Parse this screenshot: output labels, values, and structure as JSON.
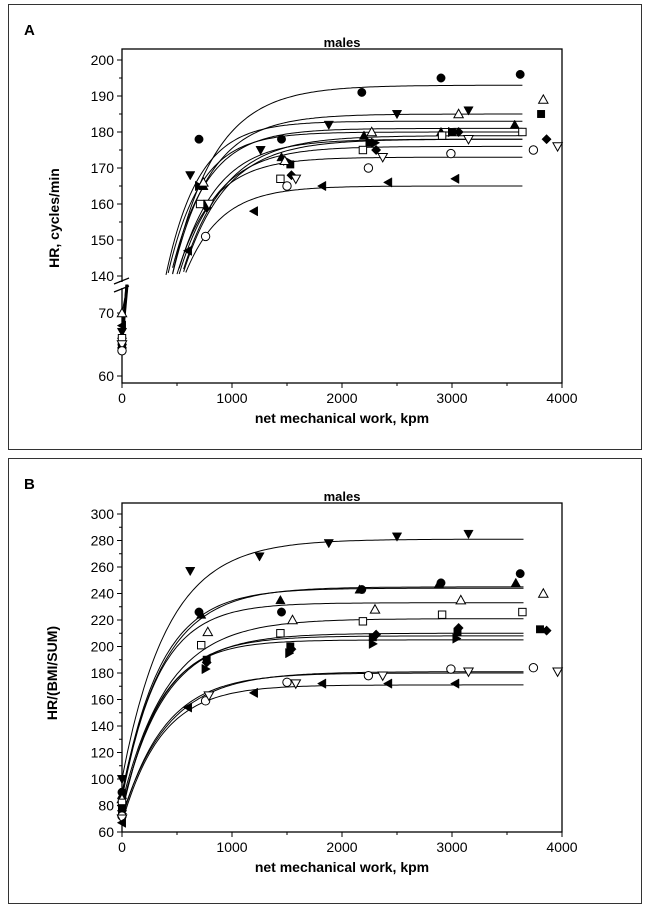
{
  "chart_data": [
    {
      "panel": "A",
      "type": "scatter",
      "title": "males",
      "xlabel": "net mechanical work, kpm",
      "ylabel": "HR, cycles/min",
      "xlim": [
        0,
        4000
      ],
      "x_ticks": [
        "0",
        "1000",
        "2000",
        "3000",
        "4000"
      ],
      "y_ticks_upper": [
        "140",
        "150",
        "160",
        "170",
        "180",
        "190",
        "200"
      ],
      "y_ticks_lower": [
        "60",
        "70"
      ],
      "axis_break": true,
      "ylim_upper": [
        140,
        200
      ],
      "ylim_lower": [
        60,
        75
      ],
      "fit_curves": "exponential rise to plateau",
      "series": [
        {
          "marker": "circle-filled",
          "points": [
            [
              0,
              65
            ],
            [
              700,
              178
            ],
            [
              1450,
              178
            ],
            [
              2180,
              191
            ],
            [
              2900,
              195
            ],
            [
              3620,
              196
            ]
          ],
          "plateau": 193
        },
        {
          "marker": "triangle-down-filled",
          "points": [
            [
              0,
              67
            ],
            [
              620,
              168
            ],
            [
              1260,
              175
            ],
            [
              1880,
              182
            ],
            [
              2500,
              185
            ],
            [
              3150,
              186
            ]
          ],
          "plateau": 185
        },
        {
          "marker": "triangle-up-filled",
          "points": [
            [
              0,
              65
            ],
            [
              740,
              165
            ],
            [
              1450,
              173
            ],
            [
              2200,
              179
            ],
            [
              2900,
              180
            ],
            [
              3570,
              182
            ]
          ],
          "plateau": 181
        },
        {
          "marker": "square-filled",
          "points": [
            [
              0,
              66
            ],
            [
              760,
              160
            ],
            [
              1530,
              171
            ],
            [
              2250,
              177
            ],
            [
              3000,
              180
            ],
            [
              3810,
              185
            ]
          ],
          "plateau": 180
        },
        {
          "marker": "diamond-filled",
          "points": [
            [
              0,
              66
            ],
            [
              770,
              159
            ],
            [
              1540,
              168
            ],
            [
              2310,
              175
            ],
            [
              3060,
              180
            ],
            [
              3860,
              178
            ]
          ],
          "plateau": 179
        },
        {
          "marker": "triangle-right-filled",
          "points": [
            [
              0,
              65
            ],
            [
              700,
              165
            ],
            [
              1500,
              172
            ],
            [
              2300,
              177
            ],
            [
              3000,
              180
            ]
          ],
          "plateau": 178
        },
        {
          "marker": "triangle-left-filled",
          "points": [
            [
              0,
              68
            ],
            [
              600,
              147
            ],
            [
              1200,
              158
            ],
            [
              1820,
              165
            ],
            [
              2420,
              166
            ],
            [
              3030,
              167
            ]
          ],
          "plateau": 165
        },
        {
          "marker": "triangle-up-open",
          "points": [
            [
              0,
              70
            ],
            [
              740,
              166
            ],
            [
              1480,
              172
            ],
            [
              2270,
              180
            ],
            [
              3060,
              185
            ],
            [
              3830,
              189
            ]
          ],
          "plateau": 183
        },
        {
          "marker": "square-open",
          "points": [
            [
              0,
              66
            ],
            [
              710,
              160
            ],
            [
              1440,
              167
            ],
            [
              2190,
              175
            ],
            [
              2910,
              179
            ],
            [
              3640,
              180
            ]
          ],
          "plateau": 178
        },
        {
          "marker": "triangle-down-open",
          "points": [
            [
              0,
              65
            ],
            [
              790,
              160
            ],
            [
              1580,
              167
            ],
            [
              2370,
              173
            ],
            [
              3150,
              178
            ],
            [
              3960,
              176
            ]
          ],
          "plateau": 176
        },
        {
          "marker": "circle-open",
          "points": [
            [
              0,
              64
            ],
            [
              760,
              151
            ],
            [
              1500,
              165
            ],
            [
              2240,
              170
            ],
            [
              2990,
              174
            ],
            [
              3740,
              175
            ]
          ],
          "plateau": 173
        }
      ]
    },
    {
      "panel": "B",
      "type": "scatter",
      "title": "males",
      "xlabel": "net mechanical work, kpm",
      "ylabel": "HR/(BMI/SUM)",
      "xlim": [
        0,
        4000
      ],
      "ylim": [
        60,
        300
      ],
      "x_ticks": [
        "0",
        "1000",
        "2000",
        "3000",
        "4000"
      ],
      "y_ticks": [
        "60",
        "80",
        "100",
        "120",
        "140",
        "160",
        "180",
        "200",
        "220",
        "240",
        "260",
        "280",
        "300"
      ],
      "fit_curves": "exponential rise to plateau",
      "series": [
        {
          "marker": "triangle-down-filled",
          "points": [
            [
              0,
              100
            ],
            [
              620,
              257
            ],
            [
              1250,
              268
            ],
            [
              1880,
              278
            ],
            [
              2500,
              283
            ],
            [
              3150,
              285
            ]
          ],
          "plateau": 281
        },
        {
          "marker": "circle-filled",
          "points": [
            [
              0,
              90
            ],
            [
              700,
              226
            ],
            [
              1450,
              226
            ],
            [
              2180,
              243
            ],
            [
              2900,
              248
            ],
            [
              3620,
              255
            ]
          ],
          "plateau": 245
        },
        {
          "marker": "triangle-up-filled",
          "points": [
            [
              0,
              88
            ],
            [
              720,
              224
            ],
            [
              1440,
              235
            ],
            [
              2160,
              243
            ],
            [
              2880,
              247
            ],
            [
              3580,
              248
            ]
          ],
          "plateau": 244
        },
        {
          "marker": "triangle-up-open",
          "points": [
            [
              0,
              85
            ],
            [
              780,
              211
            ],
            [
              1550,
              220
            ],
            [
              2300,
              228
            ],
            [
              3080,
              235
            ],
            [
              3830,
              240
            ]
          ],
          "plateau": 233
        },
        {
          "marker": "square-open",
          "points": [
            [
              0,
              82
            ],
            [
              720,
              201
            ],
            [
              1440,
              210
            ],
            [
              2190,
              219
            ],
            [
              2910,
              224
            ],
            [
              3640,
              226
            ]
          ],
          "plateau": 221
        },
        {
          "marker": "square-filled",
          "points": [
            [
              0,
              78
            ],
            [
              770,
              190
            ],
            [
              1530,
              200
            ],
            [
              2280,
              207
            ],
            [
              3050,
              211
            ],
            [
              3800,
              213
            ]
          ],
          "plateau": 210
        },
        {
          "marker": "diamond-filled",
          "points": [
            [
              0,
              76
            ],
            [
              770,
              188
            ],
            [
              1540,
              198
            ],
            [
              2310,
              209
            ],
            [
              3060,
              214
            ],
            [
              3860,
              212
            ]
          ],
          "plateau": 208
        },
        {
          "marker": "triangle-right-filled",
          "points": [
            [
              0,
              74
            ],
            [
              760,
              183
            ],
            [
              1520,
              195
            ],
            [
              2280,
              202
            ],
            [
              3040,
              206
            ]
          ],
          "plateau": 205
        },
        {
          "marker": "circle-open",
          "points": [
            [
              0,
              72
            ],
            [
              760,
              159
            ],
            [
              1500,
              173
            ],
            [
              2240,
              178
            ],
            [
              2990,
              183
            ],
            [
              3740,
              184
            ]
          ],
          "plateau": 181
        },
        {
          "marker": "triangle-down-open",
          "points": [
            [
              0,
              70
            ],
            [
              790,
              163
            ],
            [
              1580,
              172
            ],
            [
              2370,
              178
            ],
            [
              3150,
              181
            ],
            [
              3960,
              181
            ]
          ],
          "plateau": 180
        },
        {
          "marker": "triangle-left-filled",
          "points": [
            [
              0,
              67
            ],
            [
              600,
              154
            ],
            [
              1200,
              165
            ],
            [
              1820,
              172
            ],
            [
              2420,
              172
            ],
            [
              3030,
              172
            ]
          ],
          "plateau": 171
        }
      ]
    }
  ]
}
